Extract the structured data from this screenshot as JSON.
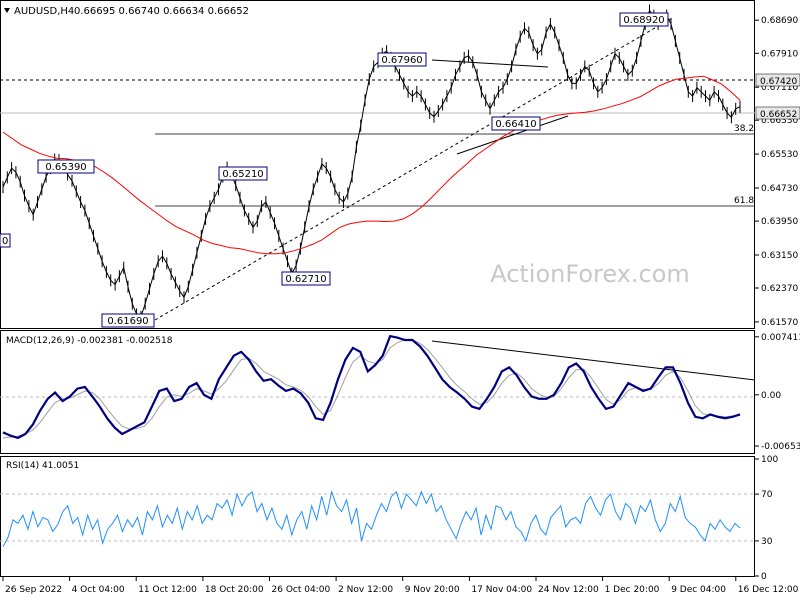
{
  "header": {
    "symbol": "AUDUSD,H4",
    "ohlc": "0.66695 0.66740 0.66634 0.66652"
  },
  "watermark": "ActionForex.com",
  "colors": {
    "price": "#000000",
    "ma": "#ff0000",
    "macd": "#000080",
    "signal": "#a0a0a0",
    "rsi": "#1e90ff",
    "label_border": "#000080",
    "current_price_bg": "#e8e8e8"
  },
  "chart_data": [
    {
      "type": "line",
      "panel": "price",
      "y_ticks": [
        "0.68690",
        "0.67910",
        "0.67110",
        "0.66330",
        "0.65530",
        "0.64730",
        "0.63950",
        "0.63150",
        "0.62370",
        "0.61570"
      ],
      "ylim": [
        0.6145,
        0.6912
      ],
      "x_ticks": [
        "26 Sep 2022",
        "4 Oct 04:00",
        "11 Oct 12:00",
        "18 Oct 20:00",
        "26 Oct 04:00",
        "2 Nov 12:00",
        "9 Nov 20:00",
        "17 Nov 04:00",
        "24 Nov 12:00",
        "1 Dec 20:00",
        "9 Dec 04:00",
        "16 Dec 12:00"
      ],
      "series": [
        {
          "values": [
            0.6475,
            0.6498,
            0.652,
            0.651,
            0.6488,
            0.6455,
            0.643,
            0.641,
            0.644,
            0.647,
            0.65,
            0.652,
            0.654,
            0.6539,
            0.6525,
            0.6505,
            0.649,
            0.6465,
            0.644,
            0.642,
            0.639,
            0.636,
            0.633,
            0.63,
            0.6275,
            0.6255,
            0.6245,
            0.6265,
            0.6285,
            0.624,
            0.62,
            0.6175,
            0.6169,
            0.62,
            0.6235,
            0.627,
            0.63,
            0.6312,
            0.6295,
            0.627,
            0.625,
            0.623,
            0.6215,
            0.624,
            0.628,
            0.632,
            0.636,
            0.64,
            0.643,
            0.645,
            0.647,
            0.65,
            0.6521,
            0.6505,
            0.648,
            0.645,
            0.642,
            0.64,
            0.638,
            0.6395,
            0.643,
            0.644,
            0.6415,
            0.639,
            0.636,
            0.633,
            0.63,
            0.6271,
            0.629,
            0.633,
            0.638,
            0.643,
            0.647,
            0.65,
            0.653,
            0.652,
            0.65,
            0.647,
            0.645,
            0.644,
            0.646,
            0.65,
            0.657,
            0.662,
            0.668,
            0.673,
            0.676,
            0.677,
            0.679,
            0.6796,
            0.678,
            0.676,
            0.674,
            0.672,
            0.67,
            0.669,
            0.67,
            0.669,
            0.667,
            0.665,
            0.6641,
            0.6655,
            0.667,
            0.669,
            0.671,
            0.674,
            0.676,
            0.678,
            0.6785,
            0.677,
            0.674,
            0.67,
            0.668,
            0.666,
            0.668,
            0.67,
            0.671,
            0.673,
            0.676,
            0.68,
            0.683,
            0.685,
            0.684,
            0.681,
            0.679,
            0.68,
            0.684,
            0.686,
            0.684,
            0.681,
            0.678,
            0.674,
            0.672,
            0.672,
            0.674,
            0.676,
            0.675,
            0.672,
            0.67,
            0.671,
            0.673,
            0.676,
            0.679,
            0.678,
            0.676,
            0.674,
            0.675,
            0.678,
            0.682,
            0.686,
            0.6892,
            0.688,
            0.686,
            0.687,
            0.688,
            0.686,
            0.682,
            0.678,
            0.674,
            0.67,
            0.669,
            0.671,
            0.67,
            0.669,
            0.668,
            0.67,
            0.669,
            0.667,
            0.665,
            0.664,
            0.666,
            0.6665
          ]
        },
        {
          "values": [
            0.6605,
            0.659,
            0.6575,
            0.6565,
            0.6555,
            0.6548,
            0.6543,
            0.6542,
            0.6538,
            0.6532,
            0.6525,
            0.6512,
            0.6497,
            0.648,
            0.6462,
            0.6444,
            0.6428,
            0.6412,
            0.6396,
            0.6382,
            0.6372,
            0.6362,
            0.635,
            0.6342,
            0.6337,
            0.6332,
            0.633,
            0.6325,
            0.632,
            0.6318,
            0.6318,
            0.632,
            0.6325,
            0.6332,
            0.634,
            0.635,
            0.6365,
            0.638,
            0.6388,
            0.6392,
            0.6395,
            0.6395,
            0.6394,
            0.6395,
            0.64,
            0.6412,
            0.6428,
            0.6448,
            0.647,
            0.6492,
            0.6512,
            0.653,
            0.655,
            0.6565,
            0.658,
            0.6595,
            0.6607,
            0.6617,
            0.6625,
            0.6633,
            0.664,
            0.6645,
            0.6648,
            0.665,
            0.6652,
            0.6655,
            0.666,
            0.6666,
            0.6672,
            0.668,
            0.6688,
            0.67,
            0.6713,
            0.6722,
            0.673,
            0.6732,
            0.6735,
            0.6737,
            0.6728,
            0.6718,
            0.67,
            0.668
          ]
        }
      ],
      "annotations": [
        "0.65390",
        "0.61690",
        "0.65210",
        "0.62710",
        "0.67960",
        "0.66410",
        "0.68920"
      ],
      "fib_labels": [
        "38.2",
        "61.8"
      ],
      "current_price": "0.66652",
      "resistance_label": "0.67420",
      "left_cut_label": "0"
    },
    {
      "type": "line",
      "panel": "macd",
      "title": "MACD(12,26,9) -0.002381 -0.002518",
      "y_ticks": [
        "0.007411",
        "0.00",
        "-0.006532"
      ],
      "ylim": [
        -0.0073,
        0.0079
      ],
      "series": [
        {
          "values": [
            -0.0048,
            -0.0052,
            -0.0055,
            -0.005,
            -0.0038,
            -0.002,
            -0.0005,
            0.0003,
            -0.0008,
            -0.0002,
            0.0008,
            0.001,
            -0.0002,
            -0.0015,
            -0.003,
            -0.0042,
            -0.005,
            -0.0045,
            -0.004,
            -0.0035,
            -0.0015,
            0.0005,
            0.0008,
            -0.0008,
            -0.0005,
            0.001,
            0.0015,
            0.0,
            -0.0005,
            0.002,
            0.0035,
            0.005,
            0.0055,
            0.0045,
            0.003,
            0.0018,
            0.002,
            0.0012,
            0.0005,
            0.0008,
            0.0002,
            -0.001,
            -0.003,
            -0.0032,
            -0.001,
            0.002,
            0.0045,
            0.006,
            0.0055,
            0.003,
            0.0038,
            0.005,
            0.0075,
            0.0073,
            0.007,
            0.007,
            0.0062,
            0.005,
            0.0035,
            0.002,
            0.001,
            0.0003,
            -0.0005,
            -0.0015,
            -0.0018,
            -0.0005,
            0.001,
            0.003,
            0.0035,
            0.0025,
            0.001,
            -0.0002,
            -0.0005,
            -0.0005,
            0.0,
            0.0015,
            0.0035,
            0.004,
            0.003,
            0.001,
            -0.0005,
            -0.0018,
            -0.0015,
            0.0,
            0.0015,
            0.001,
            0.0005,
            0.0008,
            0.0022,
            0.0035,
            0.0035,
            0.0015,
            -0.001,
            -0.0028,
            -0.003,
            -0.0025,
            -0.0028,
            -0.003,
            -0.0028,
            -0.0025
          ]
        },
        {
          "values": [
            -0.0055,
            -0.0054,
            -0.0053,
            -0.005,
            -0.0045,
            -0.0035,
            -0.0022,
            -0.001,
            -0.0005,
            -0.0004,
            0.0,
            0.0005,
            0.0003,
            -0.0005,
            -0.0018,
            -0.003,
            -0.004,
            -0.0044,
            -0.0043,
            -0.004,
            -0.003,
            -0.0015,
            -0.0003,
            0.0,
            -0.0002,
            0.0002,
            0.0008,
            0.0005,
            0.0001,
            0.0008,
            0.0018,
            0.0032,
            0.0045,
            0.0047,
            0.004,
            0.003,
            0.0025,
            0.002,
            0.0013,
            0.001,
            0.0006,
            -0.0002,
            -0.0015,
            -0.0025,
            -0.002,
            0.0,
            0.0022,
            0.0042,
            0.005,
            0.0043,
            0.004,
            0.0045,
            0.006,
            0.0067,
            0.007,
            0.007,
            0.0066,
            0.0058,
            0.0047,
            0.0035,
            0.0022,
            0.0012,
            0.0004,
            -0.0005,
            -0.0012,
            -0.001,
            0.0,
            0.0015,
            0.0025,
            0.0028,
            0.002,
            0.0008,
            0.0001,
            -0.0003,
            -0.0002,
            0.0008,
            0.0022,
            0.0032,
            0.0033,
            0.0022,
            0.0008,
            -0.0006,
            -0.0012,
            -0.0006,
            0.0006,
            0.0009,
            0.0007,
            0.0007,
            0.0014,
            0.0025,
            0.003,
            0.0022,
            0.0005,
            -0.0014,
            -0.0024,
            -0.0026,
            -0.0027,
            -0.0028,
            -0.0027,
            -0.0026
          ]
        }
      ]
    },
    {
      "type": "line",
      "panel": "rsi",
      "title": "RSI(14) 41.0051",
      "y_ticks": [
        "100",
        "70",
        "30",
        "0"
      ],
      "ylim": [
        0,
        100
      ],
      "levels": [
        70,
        30
      ],
      "series": [
        {
          "values": [
            25,
            33,
            48,
            45,
            52,
            40,
            55,
            42,
            50,
            48,
            38,
            44,
            55,
            60,
            45,
            50,
            35,
            52,
            40,
            48,
            28,
            40,
            45,
            52,
            38,
            48,
            42,
            50,
            35,
            55,
            48,
            60,
            42,
            52,
            45,
            58,
            40,
            55,
            48,
            60,
            45,
            52,
            48,
            62,
            58,
            65,
            52,
            70,
            60,
            68,
            72,
            55,
            62,
            48,
            58,
            45,
            40,
            52,
            35,
            48,
            55,
            40,
            60,
            48,
            68,
            52,
            72,
            60,
            55,
            65,
            45,
            58,
            30,
            45,
            40,
            52,
            62,
            55,
            68,
            72,
            58,
            70,
            65,
            60,
            72,
            62,
            70,
            55,
            60,
            48,
            40,
            32,
            45,
            55,
            48,
            58,
            35,
            52,
            40,
            60,
            58,
            48,
            55,
            42,
            38,
            30,
            45,
            52,
            40,
            35,
            50,
            55,
            60,
            42,
            48,
            50,
            45,
            62,
            68,
            58,
            52,
            65,
            70,
            55,
            48,
            62,
            58,
            45,
            60,
            55,
            65,
            48,
            38,
            45,
            62,
            55,
            68,
            50,
            45,
            42,
            35,
            30,
            45,
            40,
            48,
            42,
            38,
            45,
            41
          ]
        }
      ]
    }
  ]
}
